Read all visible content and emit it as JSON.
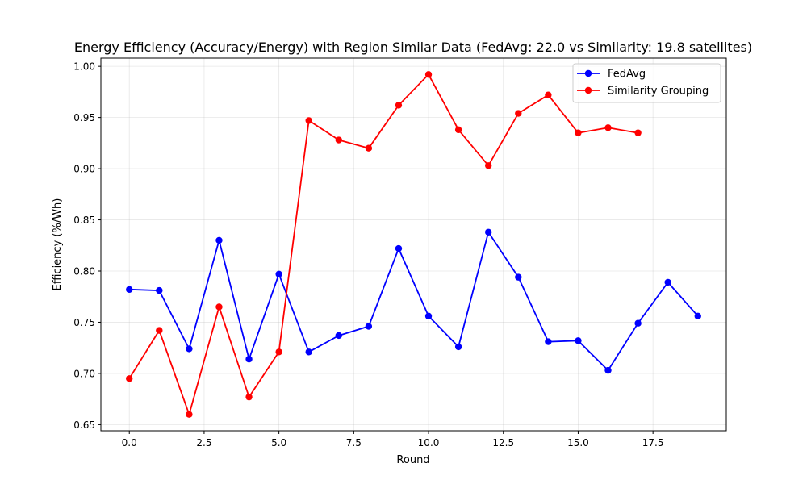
{
  "chart_data": {
    "type": "line",
    "title": "Energy Efficiency (Accuracy/Energy) with Region Similar Data (FedAvg: 22.0 vs Similarity: 19.8 satellites)",
    "xlabel": "Round",
    "ylabel": "Efficiency (%/Wh)",
    "xlim": [
      -0.95,
      19.95
    ],
    "ylim": [
      0.644,
      1.008
    ],
    "xticks": [
      0.0,
      2.5,
      5.0,
      7.5,
      10.0,
      12.5,
      15.0,
      17.5
    ],
    "xtick_labels": [
      "0.0",
      "2.5",
      "5.0",
      "7.5",
      "10.0",
      "12.5",
      "15.0",
      "17.5"
    ],
    "yticks": [
      0.65,
      0.7,
      0.75,
      0.8,
      0.85,
      0.9,
      0.95,
      1.0
    ],
    "ytick_labels": [
      "0.65",
      "0.70",
      "0.75",
      "0.80",
      "0.85",
      "0.90",
      "0.95",
      "1.00"
    ],
    "grid": true,
    "legend_position": "top-right",
    "series": [
      {
        "name": "FedAvg",
        "color": "#0000ff",
        "x": [
          0,
          1,
          2,
          3,
          4,
          5,
          6,
          7,
          8,
          9,
          10,
          11,
          12,
          13,
          14,
          15,
          16,
          17,
          18,
          19
        ],
        "values": [
          0.782,
          0.781,
          0.724,
          0.83,
          0.714,
          0.797,
          0.721,
          0.737,
          0.746,
          0.822,
          0.756,
          0.726,
          0.838,
          0.794,
          0.731,
          0.732,
          0.703,
          0.749,
          0.789,
          0.756
        ]
      },
      {
        "name": "Similarity Grouping",
        "color": "#ff0000",
        "x": [
          0,
          1,
          2,
          3,
          4,
          5,
          6,
          7,
          8,
          9,
          10,
          11,
          12,
          13,
          14,
          15,
          16,
          17
        ],
        "values": [
          0.695,
          0.742,
          0.66,
          0.765,
          0.677,
          0.721,
          0.947,
          0.928,
          0.92,
          0.962,
          0.992,
          0.938,
          0.903,
          0.954,
          0.972,
          0.935,
          0.94,
          0.935
        ]
      }
    ]
  }
}
